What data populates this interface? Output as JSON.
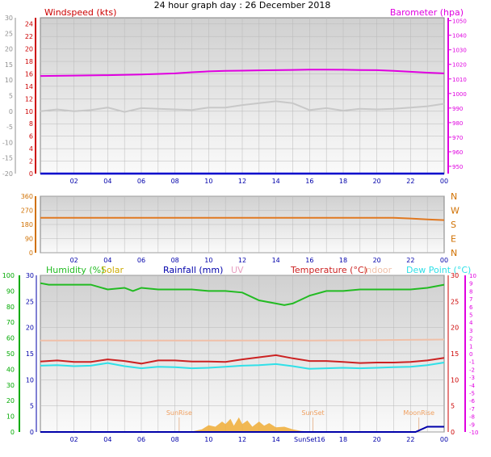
{
  "title": "24 hour graph day : 26 December 2018",
  "colors": {
    "windspeed_label": "#cc0000",
    "barometer": "#e000e0",
    "wind_gust": "#c8c8c8",
    "wind_avg": "#0000cc",
    "winddir": "#e07820",
    "humidity": "#22bb22",
    "solar": "#ccaa00",
    "rainfall": "#0000aa",
    "uv": "#e8a0c0",
    "temperature": "#cc2222",
    "indoor": "#f0c0a8",
    "dewpoint": "#30e0e8",
    "solar_fill": "#f0b040",
    "axis_green": "#00aa00",
    "axis_pink": "#e000e0",
    "axis_orange": "#d07000",
    "axis_blue": "#0000aa"
  },
  "chart_data": [
    {
      "type": "line",
      "panel": "wind_baro",
      "x_ticks": [
        "02",
        "04",
        "06",
        "08",
        "10",
        "12",
        "14",
        "16",
        "18",
        "20",
        "22",
        "00"
      ],
      "left_axis": {
        "label": "Windspeed (kts)",
        "ticks": [
          "24",
          "22",
          "20",
          "18",
          "16",
          "14",
          "12",
          "10",
          "8",
          "6",
          "4",
          "2",
          "0"
        ],
        "ylim": [
          0,
          25
        ]
      },
      "outer_left_axis": {
        "ticks": [
          "30",
          "25",
          "20",
          "15",
          "10",
          "5",
          "0",
          "-5",
          "-10",
          "-15",
          "-20"
        ],
        "ylim": [
          -20,
          30
        ]
      },
      "right_axis": {
        "label": "Barometer (hpa)",
        "ticks": [
          "1050",
          "1040",
          "1030",
          "1020",
          "1010",
          "1000",
          "990",
          "980",
          "970",
          "960",
          "950"
        ],
        "ylim": [
          945,
          1052
        ]
      },
      "series": [
        {
          "name": "Barometer (hpa)",
          "axis": "right",
          "color_key": "barometer",
          "x": [
            0,
            2,
            4,
            6,
            8,
            9,
            10,
            11,
            12,
            13,
            14,
            15,
            16,
            17,
            18,
            19,
            20,
            21,
            22,
            23,
            24
          ],
          "y": [
            1012,
            1012.3,
            1012.6,
            1013.1,
            1013.8,
            1014.6,
            1015.2,
            1015.5,
            1015.7,
            1015.9,
            1016,
            1016.2,
            1016.4,
            1016.4,
            1016.3,
            1016.1,
            1016,
            1015.6,
            1014.9,
            1014.3,
            1013.8
          ]
        },
        {
          "name": "Wind gust (kts)",
          "axis": "left",
          "color_key": "wind_gust",
          "x": [
            0,
            1,
            2,
            3,
            4,
            5,
            6,
            7,
            8,
            9,
            10,
            11,
            12,
            13,
            14,
            15,
            16,
            17,
            18,
            19,
            20,
            21,
            22,
            23,
            24
          ],
          "y": [
            10,
            10.3,
            10,
            10.2,
            10.6,
            9.9,
            10.5,
            10.4,
            10.3,
            10.2,
            10.6,
            10.6,
            11,
            11.3,
            11.6,
            11.3,
            10.2,
            10.5,
            10.1,
            10.4,
            10.3,
            10.4,
            10.6,
            10.8,
            11.2
          ]
        },
        {
          "name": "Wind average (kts)",
          "axis": "left",
          "color_key": "wind_avg",
          "x": [
            0,
            24
          ],
          "y": [
            0,
            0
          ]
        }
      ]
    },
    {
      "type": "line",
      "panel": "wind_direction",
      "x_ticks": [
        "02",
        "04",
        "06",
        "08",
        "10",
        "12",
        "14",
        "16",
        "18",
        "20",
        "22",
        "00"
      ],
      "left_axis": {
        "ticks": [
          "360",
          "270",
          "180",
          "90",
          "0"
        ],
        "ylim": [
          0,
          360
        ]
      },
      "right_axis": {
        "ticks": [
          "N",
          "W",
          "S",
          "E",
          "N"
        ]
      },
      "series": [
        {
          "name": "Wind direction",
          "color_key": "winddir",
          "x": [
            0,
            20,
            21,
            22,
            23,
            24
          ],
          "y": [
            222,
            222,
            222,
            218,
            212,
            208
          ]
        }
      ]
    },
    {
      "type": "line",
      "panel": "temp_humidity",
      "x_ticks": [
        "02",
        "04",
        "06",
        "08",
        "10",
        "12",
        "14",
        "SunSet16",
        "18",
        "20",
        "22",
        "00"
      ],
      "labels": [
        "Humidity (%)",
        "Solar",
        "Rainfall (mm)",
        "UV",
        "Temperature (°C)",
        "Indoor",
        "Dew Point (°C)"
      ],
      "left_axis": {
        "ticks": [
          "100",
          "90",
          "80",
          "70",
          "60",
          "50",
          "40",
          "30",
          "20",
          "10",
          "0"
        ],
        "ylim": [
          0,
          100
        ]
      },
      "inner_left_axis": {
        "ticks": [
          "30",
          "25",
          "20",
          "15",
          "10",
          "5",
          "0"
        ],
        "ylim": [
          0,
          30
        ]
      },
      "right_axis": {
        "ticks": [
          "30",
          "25",
          "20",
          "15",
          "10",
          "5",
          "0"
        ],
        "ylim": [
          0,
          30
        ]
      },
      "outer_right_axis": {
        "ticks": [
          "10",
          "9",
          "8",
          "7",
          "6",
          "5",
          "4",
          "3",
          "2",
          "1",
          "0",
          "-1",
          "-2",
          "-3",
          "-4",
          "-5",
          "-6",
          "-7",
          "-8",
          "-9",
          "-10"
        ],
        "ylim": [
          -20,
          30
        ]
      },
      "annotations": [
        {
          "text": "SunRise",
          "x": 8.25
        },
        {
          "text": "SunSet",
          "x": 16.2
        },
        {
          "text": "MoonRise",
          "x": 22.5
        }
      ],
      "series": [
        {
          "name": "Humidity (%)",
          "axis": "left",
          "color_key": "humidity",
          "x": [
            0,
            0.5,
            1,
            2,
            3,
            4,
            5,
            5.5,
            6,
            7,
            8,
            9,
            10,
            11,
            12,
            13,
            14,
            14.5,
            15,
            16,
            17,
            18,
            19,
            20,
            21,
            22,
            23,
            24
          ],
          "y": [
            95,
            94,
            94,
            94,
            94,
            91,
            92,
            90,
            92,
            91,
            91,
            91,
            90,
            90,
            89,
            84,
            82,
            81,
            82,
            87,
            90,
            90,
            91,
            91,
            91,
            91,
            92,
            94
          ]
        },
        {
          "name": "Temperature (°C)",
          "axis": "inner_left",
          "color_key": "temperature",
          "x": [
            0,
            1,
            2,
            3,
            4,
            5,
            6,
            7,
            8,
            9,
            10,
            11,
            12,
            13,
            14,
            15,
            16,
            17,
            18,
            19,
            20,
            21,
            22,
            23,
            24
          ],
          "y": [
            13.5,
            13.7,
            13.4,
            13.4,
            13.9,
            13.6,
            13.1,
            13.7,
            13.7,
            13.5,
            13.5,
            13.4,
            13.9,
            14.3,
            14.7,
            14.1,
            13.6,
            13.6,
            13.4,
            13.2,
            13.3,
            13.3,
            13.4,
            13.7,
            14.2
          ]
        },
        {
          "name": "Dew Point (°C)",
          "axis": "inner_left",
          "color_key": "dewpoint",
          "x": [
            0,
            1,
            2,
            3,
            4,
            5,
            6,
            7,
            8,
            9,
            10,
            11,
            12,
            13,
            14,
            15,
            16,
            17,
            18,
            19,
            20,
            21,
            22,
            23,
            24
          ],
          "y": [
            12.7,
            12.8,
            12.6,
            12.7,
            13.2,
            12.6,
            12.2,
            12.5,
            12.4,
            12.2,
            12.3,
            12.5,
            12.7,
            12.8,
            13,
            12.6,
            12.1,
            12.2,
            12.3,
            12.2,
            12.3,
            12.4,
            12.5,
            12.8,
            13.3
          ]
        },
        {
          "name": "Indoor",
          "axis": "inner_left",
          "color_key": "indoor",
          "x": [
            0,
            8,
            12,
            16,
            20,
            24
          ],
          "y": [
            17.5,
            17.5,
            17.5,
            17.5,
            17.6,
            17.7
          ]
        },
        {
          "name": "Solar",
          "axis": "inner_left",
          "color_key": "solar_fill",
          "fill": true,
          "x": [
            8.3,
            9,
            9.6,
            10,
            10.4,
            10.8,
            11,
            11.3,
            11.5,
            11.8,
            12,
            12.3,
            12.6,
            13,
            13.3,
            13.6,
            14,
            14.5,
            15,
            15.5,
            16,
            16.2
          ],
          "y": [
            0,
            0.1,
            0.5,
            1.3,
            1.0,
            2.0,
            1.5,
            2.5,
            1.2,
            2.8,
            1.5,
            2.2,
            1.0,
            2.0,
            1.2,
            1.7,
            0.9,
            1.0,
            0.5,
            0.2,
            0.1,
            0
          ]
        },
        {
          "name": "Rainfall (mm)",
          "axis": "inner_left",
          "color_key": "rainfall",
          "x": [
            0,
            22.3,
            23,
            24
          ],
          "y": [
            0,
            0,
            1,
            1
          ]
        }
      ]
    }
  ]
}
